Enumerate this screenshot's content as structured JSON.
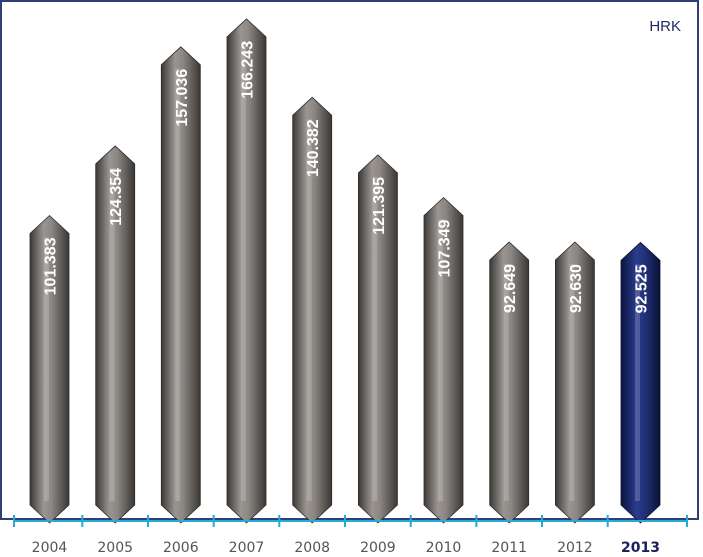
{
  "chart_data": {
    "type": "bar",
    "unit": "HRK",
    "categories": [
      "2004",
      "2005",
      "2006",
      "2007",
      "2008",
      "2009",
      "2010",
      "2011",
      "2012",
      "2013"
    ],
    "values": [
      101383,
      124354,
      157036,
      166243,
      140382,
      121395,
      107349,
      92649,
      92630,
      92525
    ],
    "value_labels": [
      "101.383",
      "124.354",
      "157.036",
      "166.243",
      "140.382",
      "121.395",
      "107.349",
      "92.649",
      "92.630",
      "92.525"
    ],
    "highlight_category": "2013",
    "grid": false,
    "colors": {
      "bar": "#7a7672",
      "bar_highlight": "#1c2a6e",
      "axis": "#29a9d8",
      "frame": "#2f3f78"
    }
  }
}
